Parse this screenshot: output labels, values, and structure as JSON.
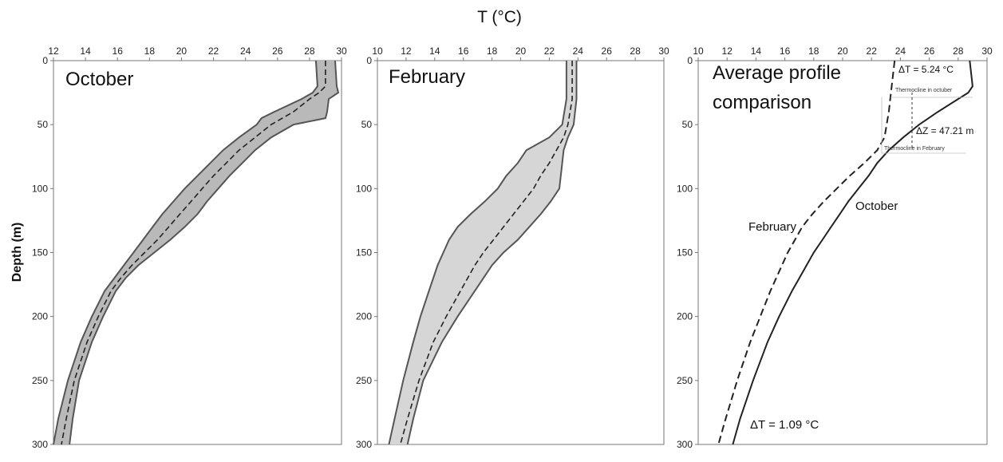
{
  "figure": {
    "x_title": "T (°C)",
    "y_title": "Depth (m)"
  },
  "chart_data": [
    {
      "type": "line",
      "title": "October",
      "xlabel": "T (°C)",
      "ylabel": "Depth (m)",
      "xlim": [
        12,
        30
      ],
      "ylim": [
        0,
        300
      ],
      "y_inverted": true,
      "x_ticks": [
        12,
        14,
        16,
        18,
        20,
        22,
        24,
        26,
        28,
        30
      ],
      "y_ticks": [
        0,
        50,
        100,
        150,
        200,
        250,
        300
      ],
      "envelope": {
        "depth": [
          0,
          20,
          25,
          30,
          40,
          45,
          50,
          60,
          70,
          80,
          90,
          100,
          110,
          120,
          130,
          140,
          150,
          160,
          170,
          180,
          200,
          220,
          250,
          280,
          300
        ],
        "min": [
          28.4,
          28.5,
          28.2,
          27.5,
          25.8,
          25.0,
          24.7,
          23.6,
          22.6,
          21.8,
          21.0,
          20.2,
          19.5,
          18.8,
          18.2,
          17.6,
          17.0,
          16.4,
          15.8,
          15.2,
          14.4,
          13.7,
          12.9,
          12.3,
          12.0
        ],
        "max": [
          29.6,
          29.7,
          29.8,
          29.2,
          29.1,
          29.0,
          27.0,
          25.6,
          24.6,
          23.8,
          23.0,
          22.3,
          21.6,
          21.0,
          20.2,
          19.3,
          18.3,
          17.3,
          16.5,
          15.9,
          15.1,
          14.4,
          13.6,
          13.2,
          13.0
        ]
      },
      "series": [
        {
          "style": "dashed",
          "depth": [
            0,
            20,
            25,
            30,
            40,
            50,
            60,
            70,
            80,
            90,
            100,
            110,
            120,
            130,
            140,
            150,
            160,
            170,
            180,
            200,
            220,
            250,
            280,
            300
          ],
          "temperature": [
            29.0,
            29.0,
            28.6,
            28.0,
            27.0,
            25.6,
            24.6,
            23.6,
            22.8,
            22.0,
            21.3,
            20.6,
            19.9,
            19.2,
            18.5,
            17.7,
            16.9,
            16.2,
            15.6,
            14.8,
            14.1,
            13.3,
            12.8,
            12.5
          ]
        }
      ]
    },
    {
      "type": "line",
      "title": "February",
      "xlabel": "T (°C)",
      "ylabel": "Depth (m)",
      "xlim": [
        10,
        30
      ],
      "ylim": [
        0,
        300
      ],
      "y_inverted": true,
      "x_ticks": [
        10,
        12,
        14,
        16,
        18,
        20,
        22,
        24,
        26,
        28,
        30
      ],
      "y_ticks": [
        0,
        50,
        100,
        150,
        200,
        250,
        300
      ],
      "envelope": {
        "depth": [
          0,
          30,
          50,
          60,
          70,
          80,
          90,
          100,
          110,
          120,
          130,
          140,
          150,
          160,
          180,
          200,
          220,
          250,
          280,
          300
        ],
        "min": [
          23.2,
          23.2,
          22.9,
          22.0,
          20.4,
          19.8,
          19.0,
          18.4,
          17.5,
          16.5,
          15.6,
          15.0,
          14.6,
          14.2,
          13.6,
          13.0,
          12.5,
          11.8,
          11.2,
          10.8
        ],
        "max": [
          23.9,
          23.9,
          23.7,
          23.3,
          23.0,
          22.9,
          22.8,
          22.7,
          22.1,
          21.4,
          20.6,
          19.8,
          18.8,
          18.0,
          16.8,
          15.6,
          14.5,
          13.2,
          12.5,
          12.1
        ]
      },
      "series": [
        {
          "style": "dashed",
          "depth": [
            0,
            30,
            50,
            60,
            70,
            80,
            90,
            100,
            110,
            120,
            130,
            140,
            150,
            160,
            180,
            200,
            220,
            250,
            280,
            300
          ],
          "temperature": [
            23.6,
            23.6,
            23.3,
            23.0,
            22.5,
            22.0,
            21.4,
            20.9,
            20.2,
            19.5,
            18.8,
            18.1,
            17.4,
            16.8,
            15.8,
            14.8,
            13.9,
            12.9,
            12.1,
            11.6
          ]
        }
      ]
    },
    {
      "type": "line",
      "title": "Average profile comparison",
      "xlabel": "T (°C)",
      "ylabel": "Depth (m)",
      "xlim": [
        10,
        30
      ],
      "ylim": [
        0,
        300
      ],
      "y_inverted": true,
      "x_ticks": [
        10,
        12,
        14,
        16,
        18,
        20,
        22,
        24,
        26,
        28,
        30
      ],
      "y_ticks": [
        0,
        50,
        100,
        150,
        200,
        250,
        300
      ],
      "series": [
        {
          "name": "October",
          "style": "solid",
          "depth": [
            0,
            10,
            20,
            25,
            30,
            40,
            50,
            60,
            70,
            80,
            90,
            100,
            110,
            120,
            130,
            140,
            150,
            160,
            170,
            180,
            200,
            220,
            250,
            280,
            300
          ],
          "temperature": [
            28.8,
            28.9,
            29.0,
            28.7,
            28.0,
            26.6,
            25.3,
            24.2,
            23.2,
            22.4,
            21.8,
            21.1,
            20.4,
            19.8,
            19.2,
            18.6,
            18.0,
            17.5,
            17.0,
            16.5,
            15.6,
            14.8,
            13.8,
            12.9,
            12.4
          ]
        },
        {
          "name": "February",
          "style": "dashed",
          "depth": [
            0,
            20,
            40,
            60,
            70,
            80,
            90,
            100,
            110,
            120,
            130,
            140,
            150,
            160,
            180,
            200,
            220,
            250,
            280,
            300
          ],
          "temperature": [
            23.6,
            23.4,
            23.2,
            22.9,
            22.4,
            21.5,
            20.5,
            19.6,
            18.7,
            17.9,
            17.2,
            16.7,
            16.2,
            15.8,
            15.0,
            14.3,
            13.6,
            12.7,
            11.9,
            11.4
          ]
        }
      ],
      "annotations": [
        {
          "text": "ΔT = 5.24 °C"
        },
        {
          "text": "Thermocline in octuber"
        },
        {
          "text": "ΔZ = 47.21 m"
        },
        {
          "text": "Thermocline in February"
        },
        {
          "text": "October"
        },
        {
          "text": "February"
        },
        {
          "text": "ΔT = 1.09 °C"
        }
      ]
    }
  ]
}
